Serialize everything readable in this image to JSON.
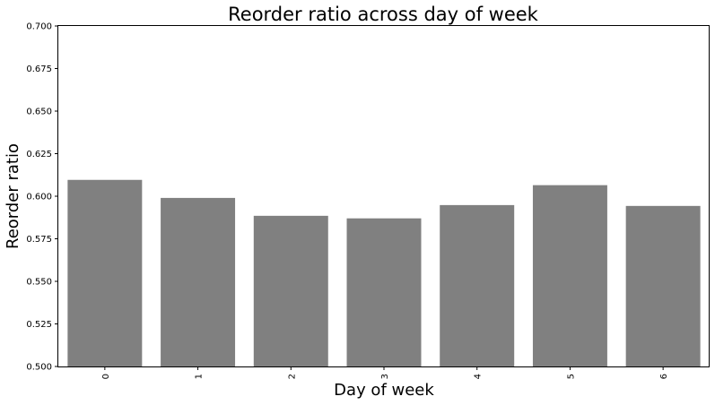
{
  "chart_data": {
    "type": "bar",
    "title": "Reorder ratio across day of week",
    "xlabel": "Day of week",
    "ylabel": "Reorder ratio",
    "categories": [
      "0",
      "1",
      "2",
      "3",
      "4",
      "5",
      "6"
    ],
    "values": [
      0.6096,
      0.599,
      0.5885,
      0.587,
      0.5948,
      0.6065,
      0.5943
    ],
    "ylim": [
      0.5,
      0.7
    ],
    "yticks": [
      "0.500",
      "0.525",
      "0.550",
      "0.575",
      "0.600",
      "0.625",
      "0.650",
      "0.675",
      "0.700"
    ],
    "grid": false,
    "bar_color": "#808080",
    "xtick_rotation": "vertical"
  }
}
